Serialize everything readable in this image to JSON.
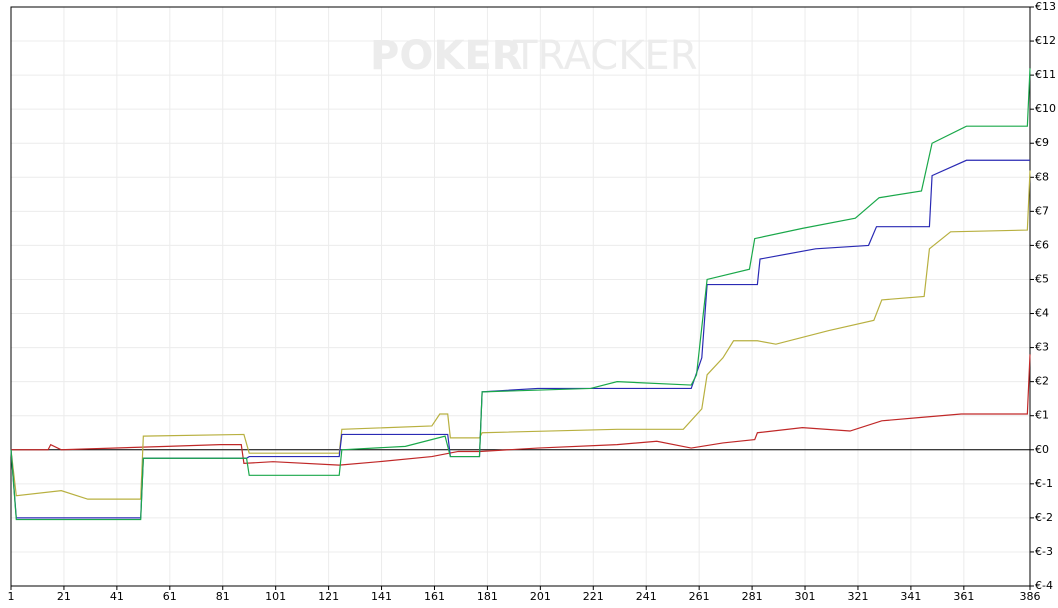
{
  "chart_data": {
    "type": "line",
    "watermark_bold": "POKER",
    "watermark_light": "TRACKER",
    "xlim": [
      1,
      386
    ],
    "ylim": [
      -4,
      13
    ],
    "xticks": [
      1,
      21,
      41,
      61,
      81,
      101,
      121,
      141,
      161,
      181,
      201,
      221,
      241,
      261,
      281,
      301,
      321,
      341,
      361,
      386
    ],
    "yticks": [
      {
        "value": -4,
        "label": "€-4"
      },
      {
        "value": -3,
        "label": "€-3"
      },
      {
        "value": -2,
        "label": "€-2"
      },
      {
        "value": -1,
        "label": "€-1"
      },
      {
        "value": 0,
        "label": "€0"
      },
      {
        "value": 1,
        "label": "€1"
      },
      {
        "value": 2,
        "label": "€2"
      },
      {
        "value": 3,
        "label": "€3"
      },
      {
        "value": 4,
        "label": "€4"
      },
      {
        "value": 5,
        "label": "€5"
      },
      {
        "value": 6,
        "label": "€6"
      },
      {
        "value": 7,
        "label": "€7"
      },
      {
        "value": 8,
        "label": "€8"
      },
      {
        "value": 9,
        "label": "€9"
      },
      {
        "value": 10,
        "label": "€10"
      },
      {
        "value": 11,
        "label": "€11"
      },
      {
        "value": 12,
        "label": "€12"
      },
      {
        "value": 13,
        "label": "€13"
      }
    ],
    "grid": true,
    "series": [
      {
        "color": "#c02828",
        "x": [
          1,
          15,
          16,
          20,
          60,
          80,
          88,
          89,
          100,
          125,
          140,
          160,
          170,
          178,
          200,
          230,
          245,
          258,
          270,
          282,
          283,
          300,
          318,
          330,
          345,
          360,
          385,
          386
        ],
        "values": [
          0,
          0,
          0.15,
          0,
          0.1,
          0.15,
          0.15,
          -0.4,
          -0.35,
          -0.45,
          -0.35,
          -0.2,
          -0.05,
          -0.05,
          0.05,
          0.15,
          0.25,
          0.05,
          0.2,
          0.3,
          0.5,
          0.65,
          0.55,
          0.85,
          0.95,
          1.05,
          1.05,
          2.8
        ]
      },
      {
        "color": "#b8b040",
        "x": [
          1,
          3,
          20,
          30,
          50,
          51,
          89,
          91,
          125,
          126,
          160,
          163,
          166,
          167,
          178,
          179,
          230,
          255,
          262,
          264,
          270,
          274,
          283,
          290,
          310,
          327,
          330,
          346,
          348,
          356,
          385,
          386
        ],
        "values": [
          0,
          -1.35,
          -1.2,
          -1.45,
          -1.45,
          0.4,
          0.45,
          -0.1,
          -0.1,
          0.6,
          0.7,
          1.05,
          1.05,
          0.35,
          0.35,
          0.5,
          0.6,
          0.6,
          1.2,
          2.2,
          2.7,
          3.2,
          3.2,
          3.1,
          3.5,
          3.8,
          4.4,
          4.5,
          5.9,
          6.4,
          6.45,
          8.2
        ]
      },
      {
        "color": "#2a2ab4",
        "x": [
          1,
          3,
          50,
          51,
          90,
          91,
          125,
          126,
          166,
          167,
          178,
          179,
          200,
          258,
          262,
          264,
          283,
          284,
          305,
          325,
          328,
          348,
          349,
          362,
          386
        ],
        "values": [
          0,
          -2,
          -2,
          -0.25,
          -0.25,
          -0.2,
          -0.2,
          0.45,
          0.45,
          -0.2,
          -0.2,
          1.7,
          1.8,
          1.8,
          2.7,
          4.85,
          4.85,
          5.6,
          5.9,
          6,
          6.55,
          6.55,
          8.05,
          8.5,
          8.5
        ]
      },
      {
        "color": "#1aa84a",
        "x": [
          1,
          3,
          50,
          51,
          90,
          91,
          125,
          126,
          150,
          165,
          167,
          178,
          179,
          220,
          230,
          258,
          260,
          264,
          280,
          282,
          300,
          320,
          329,
          345,
          349,
          362,
          385,
          386
        ],
        "values": [
          0,
          -2.05,
          -2.05,
          -0.25,
          -0.25,
          -0.75,
          -0.75,
          0,
          0.1,
          0.4,
          -0.2,
          -0.2,
          1.7,
          1.8,
          2,
          1.9,
          2.2,
          5,
          5.3,
          6.2,
          6.5,
          6.8,
          7.4,
          7.6,
          9,
          9.5,
          9.5,
          11.2
        ]
      }
    ]
  }
}
